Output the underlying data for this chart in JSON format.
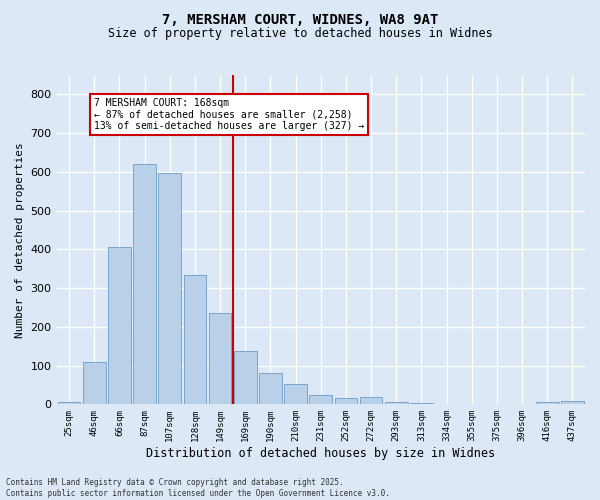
{
  "title_line1": "7, MERSHAM COURT, WIDNES, WA8 9AT",
  "title_line2": "Size of property relative to detached houses in Widnes",
  "xlabel": "Distribution of detached houses by size in Widnes",
  "ylabel": "Number of detached properties",
  "categories": [
    "25sqm",
    "46sqm",
    "66sqm",
    "87sqm",
    "107sqm",
    "128sqm",
    "149sqm",
    "169sqm",
    "190sqm",
    "210sqm",
    "231sqm",
    "252sqm",
    "272sqm",
    "293sqm",
    "313sqm",
    "334sqm",
    "355sqm",
    "375sqm",
    "396sqm",
    "416sqm",
    "437sqm"
  ],
  "values": [
    5,
    110,
    405,
    620,
    598,
    335,
    237,
    138,
    80,
    53,
    23,
    17,
    18,
    5,
    3,
    0,
    0,
    0,
    0,
    7,
    8
  ],
  "bar_color": "#b8d0e8",
  "bar_edge_color": "#5a8fbf",
  "vline_color": "#cc0000",
  "annotation_title": "7 MERSHAM COURT: 168sqm",
  "annotation_line2": "← 87% of detached houses are smaller (2,258)",
  "annotation_line3": "13% of semi-detached houses are larger (327) →",
  "annotation_box_color": "#cc0000",
  "annotation_bg_color": "#ffffff",
  "ylim": [
    0,
    850
  ],
  "yticks": [
    0,
    100,
    200,
    300,
    400,
    500,
    600,
    700,
    800
  ],
  "footer_line1": "Contains HM Land Registry data © Crown copyright and database right 2025.",
  "footer_line2": "Contains public sector information licensed under the Open Government Licence v3.0.",
  "bg_color": "#dce8f5",
  "grid_color": "#ffffff"
}
